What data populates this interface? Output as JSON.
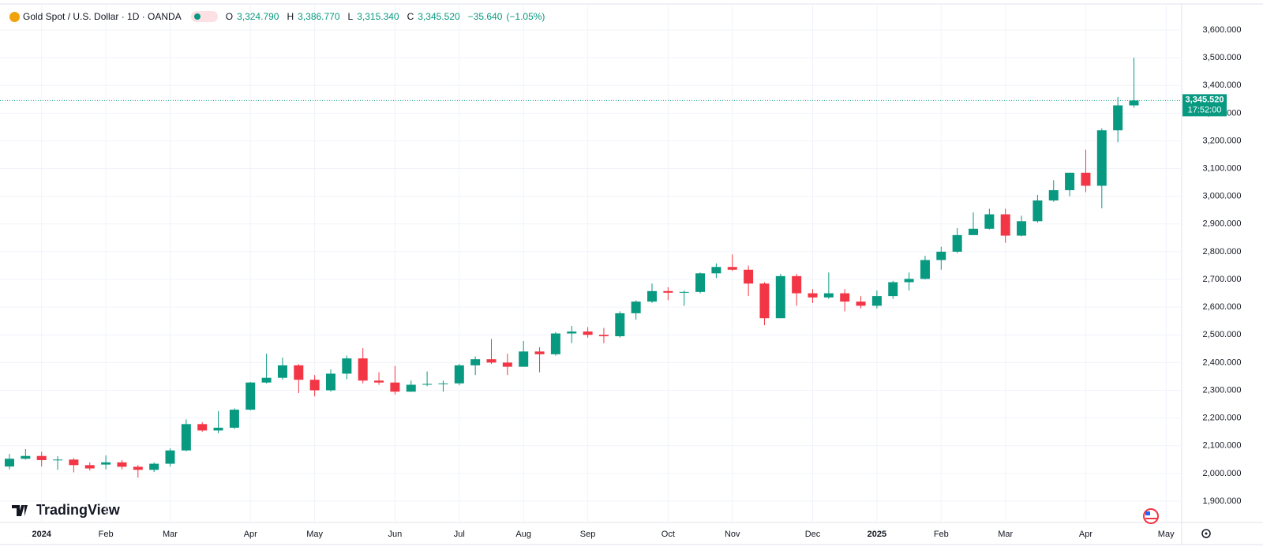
{
  "chart_data": {
    "type": "candlestick",
    "title": "Gold Spot / U.S. Dollar · 1D · OANDA",
    "ohlc_header": [
      {
        "key": "O",
        "value": 3324.79,
        "label": "3,324.790"
      },
      {
        "key": "H",
        "value": 3386.77,
        "label": "3,386.770"
      },
      {
        "key": "L",
        "value": 3315.34,
        "label": "3,315.340"
      },
      {
        "key": "C",
        "value": 3345.52,
        "label": "3,345.520"
      }
    ],
    "change": {
      "value": -35.64,
      "label": "−35.640"
    },
    "change_percent": {
      "value": -1.05,
      "label": "(−1.05%)"
    },
    "last_price": {
      "value": 3345.52,
      "label": "3,345.520"
    },
    "countdown": "17:52:00",
    "brand": "TradingView",
    "up_color": "#089981",
    "down_color": "#f23645",
    "categories": [
      null,
      null,
      "2024",
      null,
      null,
      null,
      "Feb",
      null,
      null,
      null,
      "Mar",
      null,
      null,
      null,
      null,
      "Apr",
      null,
      null,
      null,
      "May",
      null,
      null,
      null,
      null,
      "Jun",
      null,
      null,
      null,
      "Jul",
      null,
      null,
      null,
      "Aug",
      null,
      null,
      null,
      "Sep",
      null,
      null,
      null,
      null,
      "Oct",
      null,
      null,
      null,
      "Nov",
      null,
      null,
      null,
      null,
      "Dec",
      null,
      null,
      null,
      "2025",
      null,
      null,
      null,
      "Feb",
      null,
      null,
      null,
      "Mar",
      null,
      null,
      null,
      null,
      "Apr",
      null,
      null,
      null,
      null,
      "May"
    ],
    "open": [
      2025,
      2053,
      2063,
      2048,
      2050,
      2030,
      2032,
      2040,
      2024,
      2013,
      2035,
      2083,
      2178,
      2155,
      2165,
      2230,
      2328,
      2345,
      2390,
      2338,
      2300,
      2360,
      2415,
      2335,
      2328,
      2295,
      2320,
      2323,
      2325,
      2390,
      2412,
      2400,
      2385,
      2440,
      2430,
      2505,
      2512,
      2500,
      2495,
      2578,
      2620,
      2658,
      2652,
      2655,
      2722,
      2745,
      2735,
      2685,
      2560,
      2712,
      2650,
      2635,
      2650,
      2620,
      2605,
      2640,
      2690,
      2702,
      2770,
      2800,
      2860,
      2883,
      2935,
      2858,
      2910,
      2985,
      3022,
      3085,
      3038,
      3238,
      3328,
      null,
      null
    ],
    "high": [
      2070,
      2088,
      2078,
      2062,
      2055,
      2040,
      2065,
      2048,
      2030,
      2040,
      2090,
      2195,
      2185,
      2225,
      2235,
      2330,
      2432,
      2418,
      2395,
      2355,
      2375,
      2425,
      2452,
      2365,
      2388,
      2335,
      2368,
      2335,
      2395,
      2422,
      2485,
      2432,
      2478,
      2455,
      2510,
      2532,
      2528,
      2525,
      2585,
      2625,
      2685,
      2672,
      2660,
      2725,
      2758,
      2790,
      2750,
      2690,
      2720,
      2720,
      2665,
      2725,
      2665,
      2640,
      2660,
      2695,
      2725,
      2785,
      2818,
      2885,
      2942,
      2955,
      2955,
      2930,
      3005,
      3058,
      3085,
      3168,
      3245,
      3358,
      3500,
      null,
      null
    ],
    "low": [
      2015,
      2050,
      2025,
      2013,
      2004,
      2010,
      2015,
      2015,
      1985,
      2005,
      2025,
      2080,
      2150,
      2145,
      2160,
      2228,
      2325,
      2338,
      2290,
      2278,
      2295,
      2340,
      2325,
      2320,
      2285,
      2295,
      2315,
      2295,
      2318,
      2355,
      2395,
      2355,
      2385,
      2365,
      2425,
      2470,
      2490,
      2470,
      2490,
      2555,
      2615,
      2625,
      2605,
      2650,
      2705,
      2730,
      2640,
      2535,
      2560,
      2605,
      2615,
      2630,
      2585,
      2595,
      2595,
      2630,
      2660,
      2700,
      2735,
      2795,
      2860,
      2880,
      2832,
      2855,
      2905,
      2980,
      3000,
      3015,
      2957,
      3195,
      3320,
      null,
      null
    ],
    "close": [
      2053,
      2063,
      2048,
      2050,
      2030,
      2018,
      2040,
      2024,
      2013,
      2035,
      2083,
      2178,
      2155,
      2165,
      2230,
      2328,
      2345,
      2390,
      2338,
      2300,
      2360,
      2415,
      2335,
      2328,
      2295,
      2320,
      2323,
      2325,
      2390,
      2412,
      2400,
      2385,
      2440,
      2430,
      2505,
      2512,
      2500,
      2495,
      2578,
      2620,
      2658,
      2652,
      2655,
      2722,
      2745,
      2735,
      2685,
      2560,
      2712,
      2650,
      2635,
      2650,
      2620,
      2605,
      2640,
      2690,
      2702,
      2770,
      2800,
      2860,
      2883,
      2935,
      2858,
      2910,
      2985,
      3022,
      3085,
      3038,
      3238,
      3328,
      3345.52,
      null,
      null
    ],
    "ylim": [
      1823,
      3694
    ],
    "yticks": [
      {
        "value": 1900,
        "label": "1,900.000"
      },
      {
        "value": 2000,
        "label": "2,000.000"
      },
      {
        "value": 2100,
        "label": "2,100.000"
      },
      {
        "value": 2200,
        "label": "2,200.000"
      },
      {
        "value": 2300,
        "label": "2,300.000"
      },
      {
        "value": 2400,
        "label": "2,400.000"
      },
      {
        "value": 2500,
        "label": "2,500.000"
      },
      {
        "value": 2600,
        "label": "2,600.000"
      },
      {
        "value": 2700,
        "label": "2,700.000"
      },
      {
        "value": 2800,
        "label": "2,800.000"
      },
      {
        "value": 2900,
        "label": "2,900.000"
      },
      {
        "value": 3000,
        "label": "3,000.000"
      },
      {
        "value": 3100,
        "label": "3,100.000"
      },
      {
        "value": 3200,
        "label": "3,200.000"
      },
      {
        "value": 3300,
        "label": "3,300.000"
      },
      {
        "value": 3400,
        "label": "3,400.000"
      },
      {
        "value": 3500,
        "label": "3,500.000"
      },
      {
        "value": 3600,
        "label": "3,600.000"
      }
    ],
    "grid": true
  }
}
